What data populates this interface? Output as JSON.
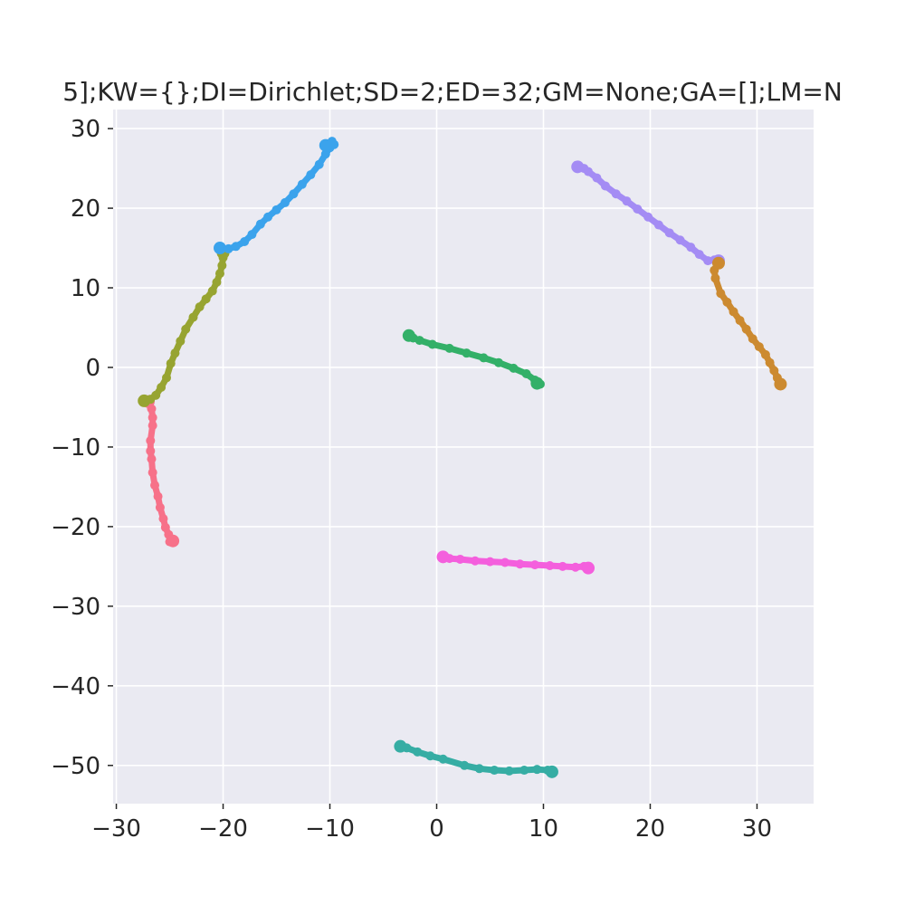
{
  "chart_data": {
    "type": "scatter",
    "title": "5];KW={};DI=Dirichlet;SD=2;ED=32;GM=None;GA=[];LM=N",
    "xlabel": "",
    "ylabel": "",
    "xlim": [
      -30.3,
      35.3
    ],
    "ylim": [
      -54.8,
      32.4
    ],
    "xticks": [
      -30,
      -20,
      -10,
      0,
      10,
      20,
      30
    ],
    "yticks": [
      30,
      20,
      10,
      0,
      -10,
      -20,
      -30,
      -40,
      -50
    ],
    "xtick_labels": [
      "−30",
      "−20",
      "−10",
      "0",
      "10",
      "20",
      "30"
    ],
    "ytick_labels": [
      "30",
      "20",
      "10",
      "0",
      "−10",
      "−20",
      "−30",
      "−40",
      "−50"
    ],
    "grid": true,
    "background": "#EAEAF2",
    "series": [
      {
        "color": "#F77189",
        "points": [
          [
            -27.0,
            -4.3
          ],
          [
            -26.7,
            -5.2
          ],
          [
            -26.6,
            -6.3
          ],
          [
            -26.6,
            -7.3
          ],
          [
            -26.8,
            -9.2
          ],
          [
            -26.8,
            -10.5
          ],
          [
            -26.7,
            -11.5
          ],
          [
            -26.6,
            -13.2
          ],
          [
            -26.4,
            -14.8
          ],
          [
            -26.1,
            -16.2
          ],
          [
            -25.9,
            -17.6
          ],
          [
            -25.6,
            -19.0
          ],
          [
            -25.4,
            -20.1
          ],
          [
            -25.1,
            -21.0
          ],
          [
            -24.9,
            -21.6
          ],
          [
            -25.0,
            -21.9
          ],
          [
            -24.7,
            -21.8
          ]
        ]
      },
      {
        "color": "#97A431",
        "points": [
          [
            -27.4,
            -4.2
          ],
          [
            -26.8,
            -4.0
          ],
          [
            -26.3,
            -3.5
          ],
          [
            -25.8,
            -2.5
          ],
          [
            -25.3,
            -1.3
          ],
          [
            -24.9,
            0.5
          ],
          [
            -24.5,
            1.8
          ],
          [
            -24.0,
            3.3
          ],
          [
            -23.5,
            4.8
          ],
          [
            -22.8,
            6.3
          ],
          [
            -22.2,
            7.6
          ],
          [
            -21.6,
            8.6
          ],
          [
            -21.0,
            9.6
          ],
          [
            -20.6,
            10.7
          ],
          [
            -20.3,
            11.8
          ],
          [
            -20.1,
            12.8
          ],
          [
            -20.0,
            13.8
          ],
          [
            -20.0,
            14.4
          ]
        ]
      },
      {
        "color": "#3BA3EC",
        "points": [
          [
            -20.3,
            15.0
          ],
          [
            -19.5,
            14.9
          ],
          [
            -18.8,
            15.2
          ],
          [
            -18.0,
            15.8
          ],
          [
            -17.3,
            16.7
          ],
          [
            -16.5,
            18.0
          ],
          [
            -15.8,
            18.9
          ],
          [
            -15.0,
            19.8
          ],
          [
            -14.2,
            20.7
          ],
          [
            -13.4,
            21.8
          ],
          [
            -12.6,
            23.0
          ],
          [
            -11.8,
            24.2
          ],
          [
            -11.0,
            25.5
          ],
          [
            -10.4,
            26.8
          ],
          [
            -10.0,
            27.6
          ],
          [
            -9.6,
            28.0
          ],
          [
            -9.8,
            28.4
          ],
          [
            -10.4,
            27.9
          ]
        ]
      },
      {
        "color": "#33B068",
        "points": [
          [
            -2.6,
            4.0
          ],
          [
            -2.2,
            3.7
          ],
          [
            -1.6,
            3.4
          ],
          [
            -0.4,
            2.9
          ],
          [
            1.2,
            2.4
          ],
          [
            2.8,
            1.8
          ],
          [
            4.4,
            1.2
          ],
          [
            5.8,
            0.6
          ],
          [
            7.2,
            -0.1
          ],
          [
            8.4,
            -0.8
          ],
          [
            9.2,
            -1.6
          ],
          [
            9.7,
            -2.1
          ],
          [
            9.4,
            -2.0
          ]
        ]
      },
      {
        "color": "#A48CF4",
        "points": [
          [
            13.2,
            25.2
          ],
          [
            13.8,
            25.0
          ],
          [
            14.2,
            24.6
          ],
          [
            15.0,
            23.8
          ],
          [
            15.8,
            22.8
          ],
          [
            16.8,
            21.8
          ],
          [
            17.8,
            20.9
          ],
          [
            18.8,
            19.9
          ],
          [
            19.8,
            18.9
          ],
          [
            20.8,
            17.9
          ],
          [
            21.8,
            16.9
          ],
          [
            22.8,
            16.0
          ],
          [
            23.8,
            15.1
          ],
          [
            24.6,
            14.2
          ],
          [
            25.4,
            13.4
          ],
          [
            26.0,
            13.5
          ],
          [
            26.4,
            13.4
          ]
        ]
      },
      {
        "color": "#CC8A30",
        "points": [
          [
            26.4,
            13.1
          ],
          [
            26.0,
            12.2
          ],
          [
            26.1,
            11.2
          ],
          [
            26.6,
            9.3
          ],
          [
            27.2,
            8.2
          ],
          [
            27.8,
            7.0
          ],
          [
            28.4,
            5.9
          ],
          [
            29.0,
            4.8
          ],
          [
            29.6,
            3.6
          ],
          [
            30.2,
            2.6
          ],
          [
            30.8,
            1.6
          ],
          [
            31.2,
            0.6
          ],
          [
            31.6,
            -0.4
          ],
          [
            31.9,
            -1.3
          ],
          [
            32.1,
            -1.9
          ],
          [
            32.2,
            -2.1
          ]
        ]
      },
      {
        "color": "#F45FDD",
        "points": [
          [
            0.6,
            -23.8
          ],
          [
            1.2,
            -24.0
          ],
          [
            2.2,
            -24.1
          ],
          [
            3.6,
            -24.3
          ],
          [
            5.0,
            -24.4
          ],
          [
            6.4,
            -24.5
          ],
          [
            7.8,
            -24.7
          ],
          [
            9.2,
            -24.8
          ],
          [
            10.6,
            -24.9
          ],
          [
            11.8,
            -25.0
          ],
          [
            13.0,
            -25.1
          ],
          [
            13.8,
            -25.0
          ],
          [
            14.2,
            -25.2
          ]
        ]
      },
      {
        "color": "#36ADA4",
        "points": [
          [
            -3.4,
            -47.6
          ],
          [
            -2.8,
            -47.8
          ],
          [
            -1.8,
            -48.3
          ],
          [
            -0.6,
            -48.8
          ],
          [
            0.6,
            -49.2
          ],
          [
            2.6,
            -50.0
          ],
          [
            4.0,
            -50.4
          ],
          [
            5.4,
            -50.6
          ],
          [
            6.8,
            -50.7
          ],
          [
            8.2,
            -50.6
          ],
          [
            9.4,
            -50.5
          ],
          [
            10.4,
            -50.6
          ],
          [
            10.8,
            -50.8
          ]
        ]
      }
    ]
  }
}
